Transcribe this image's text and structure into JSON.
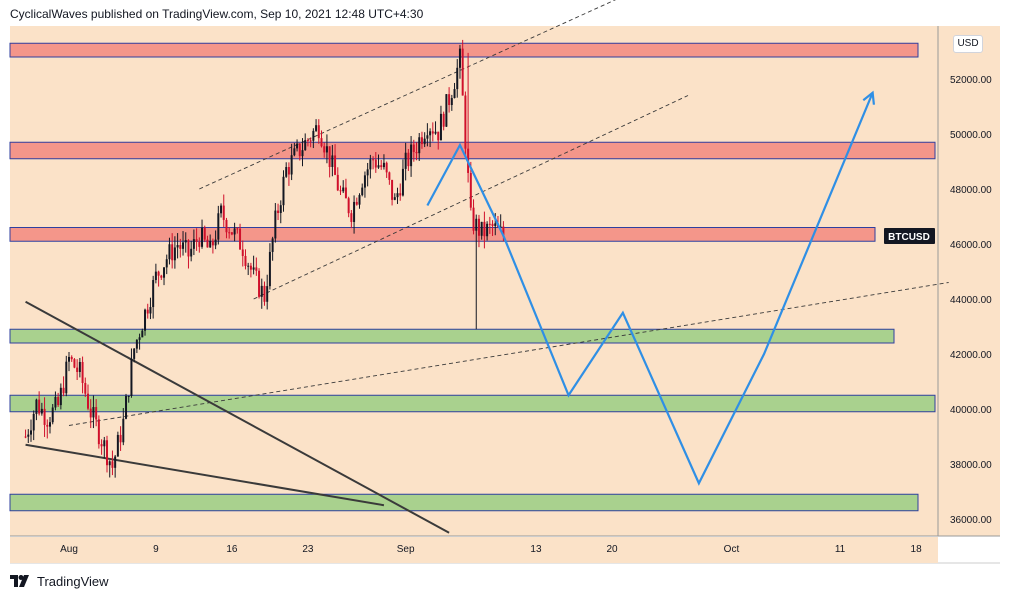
{
  "header": {
    "publisher_text": "CyclicalWaves published on TradingView.com, Sep 10, 2021 12:48 UTC+4:30"
  },
  "footer": {
    "brand": "TradingView"
  },
  "price_axis": {
    "currency_label": "USD"
  },
  "colors": {
    "background": "#fbe2c8",
    "resistance_zone": "#f4968a",
    "support_zone": "#a9d18e",
    "zone_border": "#2f3f9f",
    "candle_up": "#131722",
    "candle_down": "#d0102b",
    "projection": "#2f8fe5",
    "trendline": "#3a3a3a"
  },
  "chart_data": {
    "type": "candlestick",
    "symbol": "BTCUSD",
    "currency": "USD",
    "ylim": [
      35400,
      53900
    ],
    "y_ticks": [
      "52000.00",
      "50000.00",
      "48000.00",
      "46000.00",
      "44000.00",
      "42000.00",
      "40000.00",
      "38000.00",
      "36000.00"
    ],
    "x_ticks": [
      "Aug",
      "9",
      "16",
      "23",
      "Sep",
      "13",
      "20",
      "Oct",
      "11",
      "18"
    ],
    "last_price_label": "BTCUSD",
    "last_price": 46300,
    "price_path": [
      [
        "Jul 28",
        39000
      ],
      [
        "Jul 29",
        40200
      ],
      [
        "Jul 30",
        39700
      ],
      [
        "Jul 31",
        40100
      ],
      [
        "Aug 1",
        41800
      ],
      [
        "Aug 2",
        41300
      ],
      [
        "Aug 3",
        39900
      ],
      [
        "Aug 4",
        38900
      ],
      [
        "Aug 5",
        37900
      ],
      [
        "Aug 6",
        39500
      ],
      [
        "Aug 7",
        42200
      ],
      [
        "Aug 8",
        43500
      ],
      [
        "Aug 9",
        44800
      ],
      [
        "Aug 10",
        45500
      ],
      [
        "Aug 11",
        46000
      ],
      [
        "Aug 12",
        45600
      ],
      [
        "Aug 13",
        46300
      ],
      [
        "Aug 14",
        45700
      ],
      [
        "Aug 15",
        47100
      ],
      [
        "Aug 16",
        46500
      ],
      [
        "Aug 17",
        45900
      ],
      [
        "Aug 18",
        44800
      ],
      [
        "Aug 19",
        44100
      ],
      [
        "Aug 20",
        46800
      ],
      [
        "Aug 21",
        48700
      ],
      [
        "Aug 22",
        49300
      ],
      [
        "Aug 23",
        49800
      ],
      [
        "Aug 24",
        50300
      ],
      [
        "Aug 25",
        49100
      ],
      [
        "Aug 26",
        47800
      ],
      [
        "Aug 27",
        47200
      ],
      [
        "Aug 28",
        48400
      ],
      [
        "Aug 29",
        49100
      ],
      [
        "Aug 30",
        48700
      ],
      [
        "Aug 31",
        47500
      ],
      [
        "Sep 1",
        48900
      ],
      [
        "Sep 2",
        49600
      ],
      [
        "Sep 3",
        50400
      ],
      [
        "Sep 4",
        50100
      ],
      [
        "Sep 5",
        51300
      ],
      [
        "Sep 6",
        52700
      ],
      [
        "Sep 7",
        46900
      ],
      [
        "Sep 8",
        46400
      ],
      [
        "Sep 9",
        46600
      ],
      [
        "Sep 10",
        46300
      ]
    ],
    "zones": [
      {
        "kind": "resistance",
        "from": 52800,
        "to": 53300
      },
      {
        "kind": "resistance",
        "from": 49100,
        "to": 49700
      },
      {
        "kind": "resistance",
        "from": 46100,
        "to": 46600
      },
      {
        "kind": "support",
        "from": 42400,
        "to": 42900
      },
      {
        "kind": "support",
        "from": 39900,
        "to": 40500
      },
      {
        "kind": "support",
        "from": 36300,
        "to": 36900
      }
    ],
    "projection_path": [
      [
        "Sep 3",
        47400
      ],
      [
        "Sep 6",
        49600
      ],
      [
        "Sep 10",
        46300
      ],
      [
        "Sep 16",
        40500
      ],
      [
        "Sep 21",
        43500
      ],
      [
        "Sep 28",
        37300
      ],
      [
        "Oct 4",
        42000
      ],
      [
        "Oct 14",
        51500
      ]
    ]
  }
}
